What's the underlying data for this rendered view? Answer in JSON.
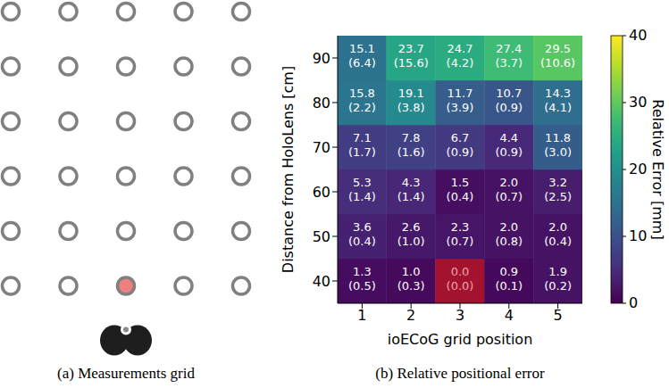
{
  "chart_data": {
    "type": "heatmap",
    "title": "(b) Relative positional error",
    "x_label": "ioECoG grid position",
    "y_label": "Distance from HoloLens [cm]",
    "x": [
      1,
      2,
      3,
      4,
      5
    ],
    "y": [
      40,
      50,
      60,
      70,
      80,
      90
    ],
    "xlim": [
      0.5,
      5.5
    ],
    "xticks": [
      1,
      2,
      3,
      4,
      5
    ],
    "ylim": [
      35,
      95
    ],
    "yticks": [
      40,
      50,
      60,
      70,
      80,
      90
    ],
    "cells": [
      [
        1.3,
        1.0,
        0.0,
        0.9,
        1.9
      ],
      [
        3.6,
        2.6,
        2.3,
        2.0,
        2.0
      ],
      [
        5.3,
        4.3,
        1.5,
        2.0,
        3.2
      ],
      [
        7.1,
        7.8,
        6.7,
        4.4,
        11.8
      ],
      [
        15.8,
        19.1,
        11.7,
        10.7,
        14.3
      ],
      [
        15.1,
        23.7,
        24.7,
        27.4,
        29.5
      ]
    ],
    "cells_std": [
      [
        0.5,
        0.3,
        0.0,
        0.1,
        0.2
      ],
      [
        0.4,
        1.0,
        0.7,
        0.8,
        0.4
      ],
      [
        1.4,
        1.4,
        0.4,
        0.7,
        2.5
      ],
      [
        1.7,
        1.6,
        0.9,
        0.9,
        3.0
      ],
      [
        2.2,
        3.8,
        3.9,
        0.9,
        4.1
      ],
      [
        6.4,
        15.6,
        4.2,
        3.7,
        10.6
      ]
    ],
    "data_labels": true,
    "colorbar": {
      "label": "Relative Error [mm]",
      "range": [
        0,
        40
      ],
      "ticks": [
        0,
        10,
        20,
        30,
        40
      ]
    },
    "highlight": {
      "x": 3,
      "y": 40,
      "color": "#a3122f"
    }
  },
  "measurements_grid": {
    "caption": "(a) Measurements grid",
    "rows": 6,
    "columns": 5,
    "highlight": {
      "row": 6,
      "column": 3,
      "color": "#f08080"
    }
  }
}
